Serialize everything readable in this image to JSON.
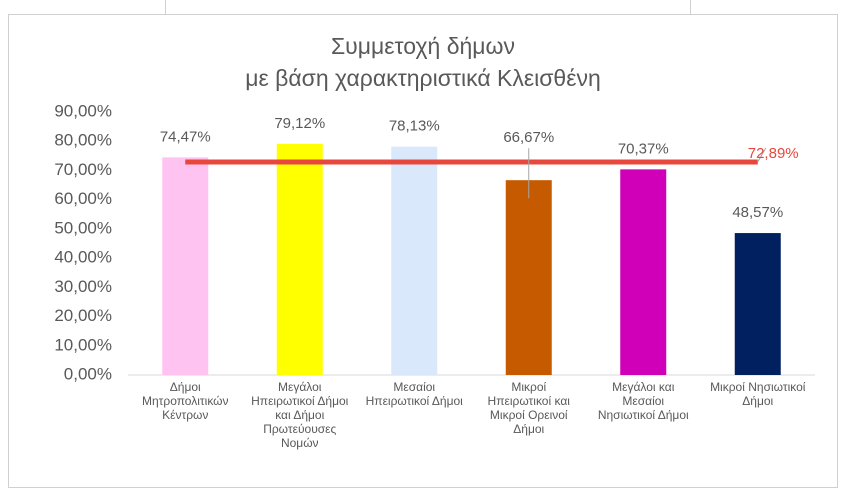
{
  "chart_data": {
    "type": "bar",
    "title": [
      "Συμμετοχή δήμων",
      "με βάση χαρακτηριστικά Κλεισθένη"
    ],
    "categories": [
      "Δήμοι Μητροπολιτικών Κέντρων",
      "Μεγάλοι Ηπειρωτικοί Δήμοι και Δήμοι Πρωτεύουσες Νομών",
      "Μεσαίοι Ηπειρωτικοί Δήμοι",
      "Μικροί Ηπειρωτικοί και Μικροί Ορεινοί Δήμοι",
      "Μεγάλοι και Μεσαίοι Νησιωτικοί Δήμοι",
      "Μικροί Νησιωτικοί Δήμοι"
    ],
    "values": [
      74.47,
      79.12,
      78.13,
      66.67,
      70.37,
      48.57
    ],
    "value_labels": [
      "74,47%",
      "79,12%",
      "78,13%",
      "66,67%",
      "70,37%",
      "48,57%"
    ],
    "colors": [
      "#ffc3f2",
      "#ffff00",
      "#dae8fc",
      "#c55a00",
      "#d000b8",
      "#002060"
    ],
    "reference_line": {
      "value": 72.89,
      "label": "72,89%",
      "color": "#e8473d"
    },
    "ylim": [
      0,
      90
    ],
    "yticks": [
      {
        "value": 0,
        "label": "0,00%"
      },
      {
        "value": 10,
        "label": "10,00%"
      },
      {
        "value": 20,
        "label": "20,00%"
      },
      {
        "value": 30,
        "label": "30,00%"
      },
      {
        "value": 40,
        "label": "40,00%"
      },
      {
        "value": 50,
        "label": "50,00%"
      },
      {
        "value": 60,
        "label": "60,00%"
      },
      {
        "value": 70,
        "label": "70,00%"
      },
      {
        "value": 80,
        "label": "80,00%"
      },
      {
        "value": 90,
        "label": "90,00%"
      }
    ],
    "grid": false
  }
}
